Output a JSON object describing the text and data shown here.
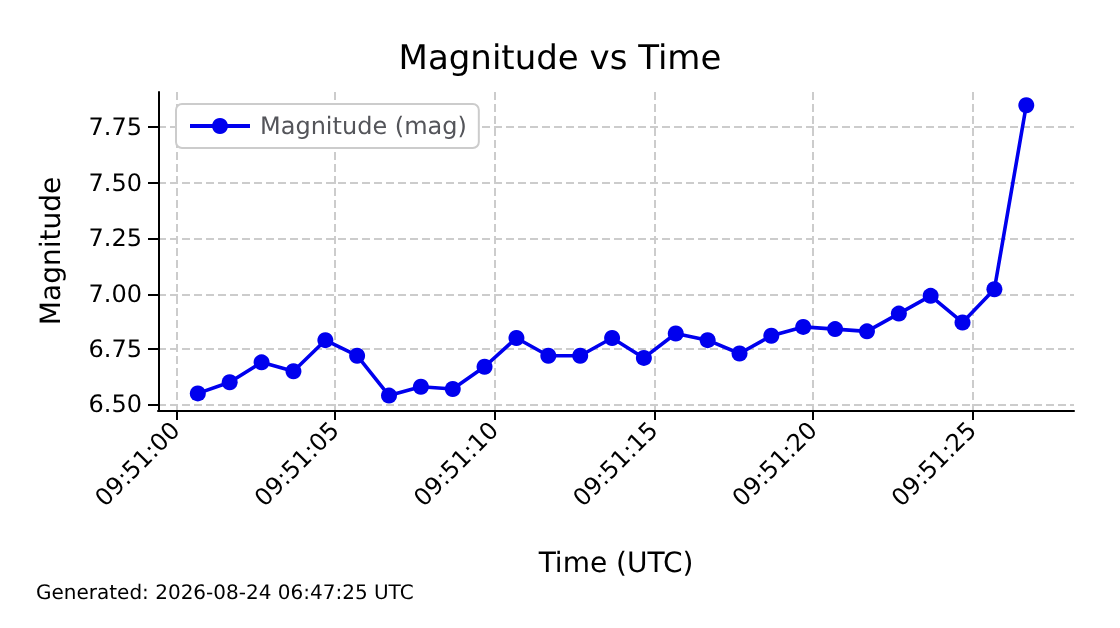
{
  "chart_data": {
    "type": "line",
    "title": "Magnitude vs Time",
    "xlabel": "Time (UTC)",
    "ylabel": "Magnitude",
    "annotations": [
      "Generated: 2026-08-24 06:47:25 UTC"
    ],
    "x": [
      9.850194,
      9.850472,
      9.85075,
      9.851028,
      9.851306,
      9.851583,
      9.851861,
      9.852139,
      9.852417,
      9.852694,
      9.852972,
      9.85325,
      9.853528,
      9.853806,
      9.854083,
      9.854361,
      9.854639,
      9.854917,
      9.855194,
      9.855472,
      9.85575,
      9.856028,
      9.856306,
      9.856583,
      9.856861,
      9.857139,
      9.857417
    ],
    "series": [
      {
        "name": "Magnitude (mag)",
        "color": "#0000ee",
        "values": [
          6.55,
          6.6,
          6.69,
          6.65,
          6.79,
          6.72,
          6.54,
          6.58,
          6.57,
          6.67,
          6.8,
          6.72,
          6.72,
          6.8,
          6.71,
          6.82,
          6.79,
          6.73,
          6.81,
          6.85,
          6.84,
          6.83,
          6.91,
          6.99,
          6.87,
          7.02,
          7.85
        ]
      }
    ],
    "xlim": [
      9.849847,
      9.857833
    ],
    "xticks": [
      {
        "value": 9.85,
        "label": "09:51:00"
      },
      {
        "value": 9.851389,
        "label": "09:51:05"
      },
      {
        "value": 9.852778,
        "label": "09:51:10"
      },
      {
        "value": 9.854167,
        "label": "09:51:15"
      },
      {
        "value": 9.855556,
        "label": "09:51:20"
      },
      {
        "value": 9.856944,
        "label": "09:51:25"
      }
    ],
    "ylim": [
      6.475,
      7.91
    ],
    "yticks": [
      {
        "value": 6.5,
        "label": "6.50"
      },
      6.75,
      {
        "value": 7,
        "label": "7.00"
      },
      7.25,
      {
        "value": 7.5,
        "label": "7.50"
      },
      7.75
    ],
    "grid": true,
    "legend": "top left",
    "marker": "circle",
    "line_style": "solid"
  }
}
